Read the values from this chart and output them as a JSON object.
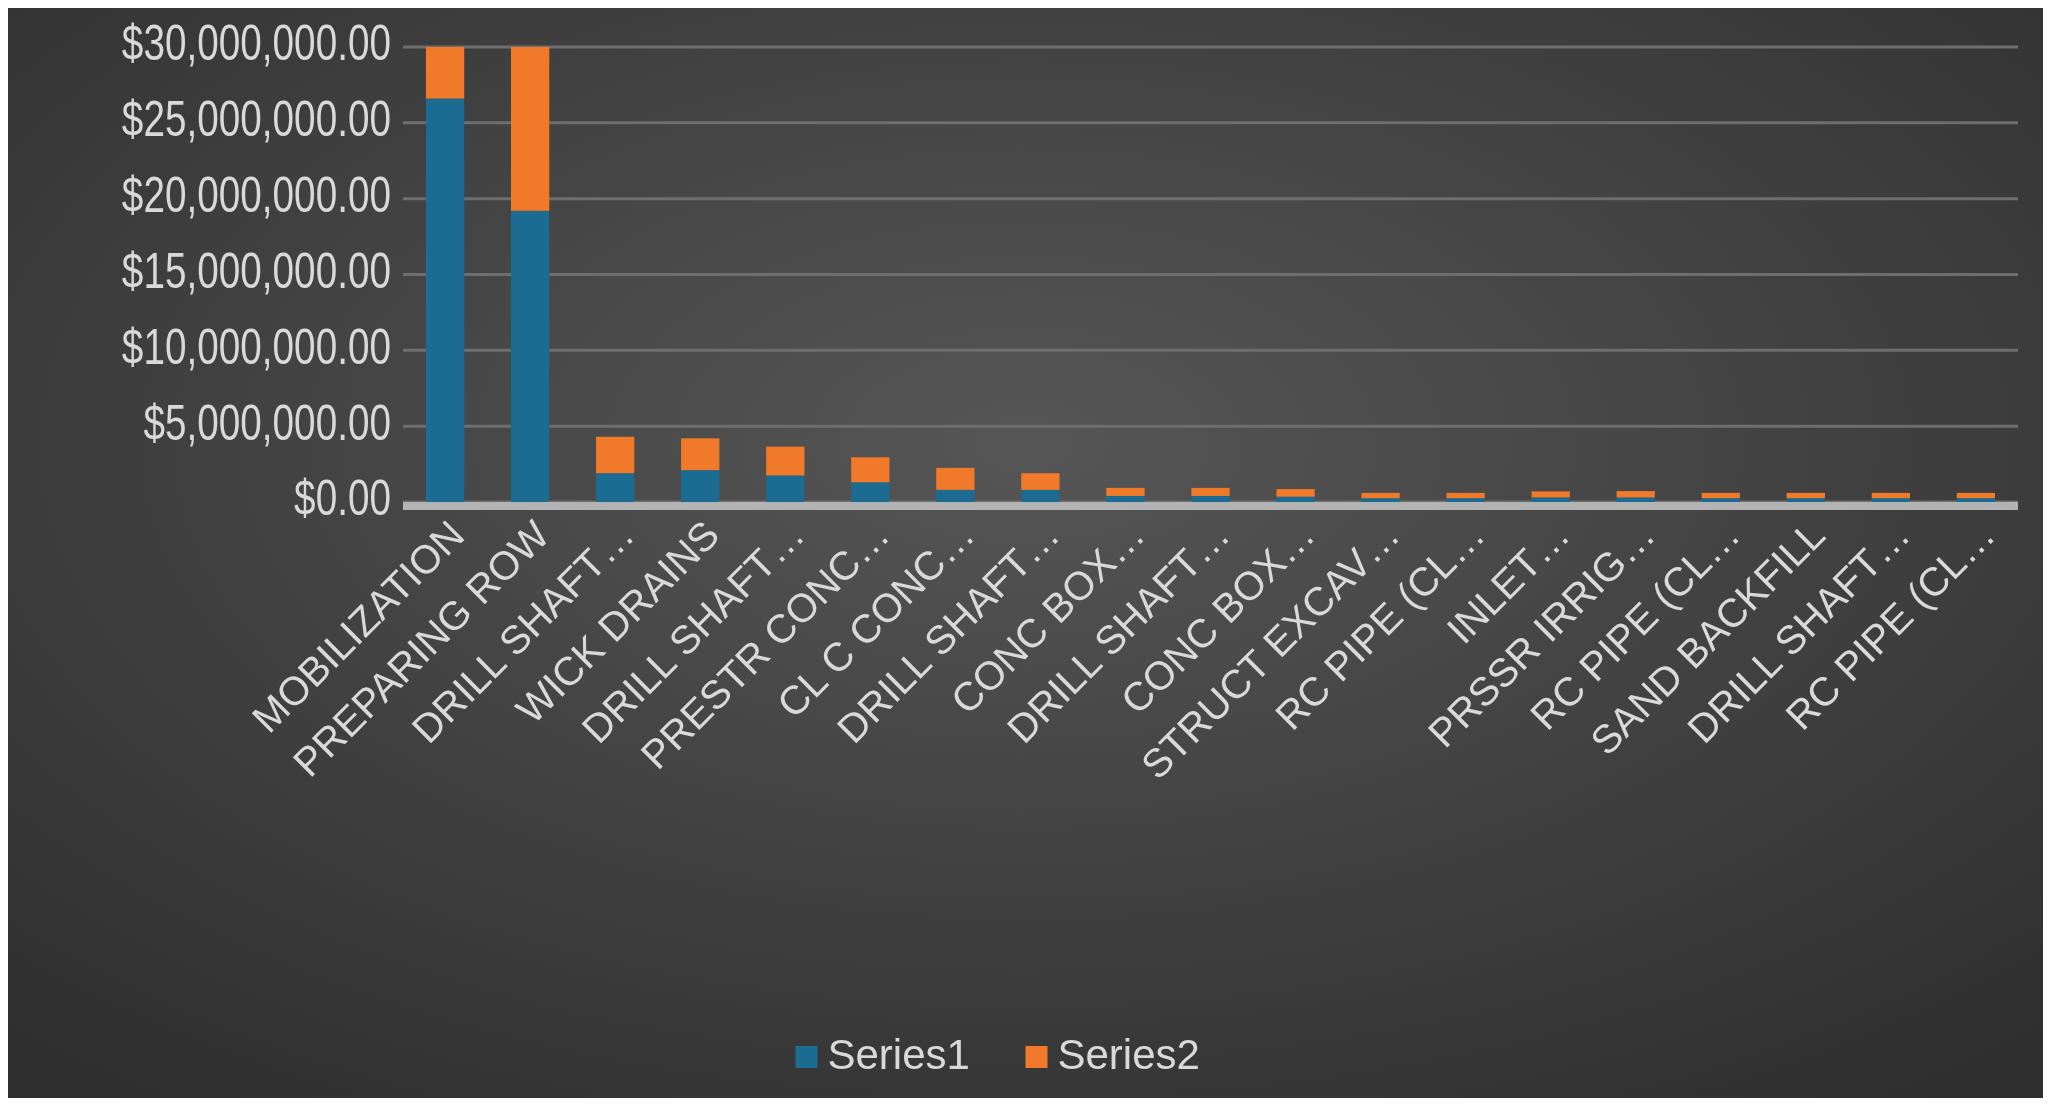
{
  "chart_data": {
    "type": "bar",
    "stacked": true,
    "categories": [
      "MOBILIZATION",
      "PREPARING ROW",
      "DRILL SHAFT…",
      "WICK DRAINS",
      "DRILL SHAFT…",
      "PRESTR CONC…",
      "CL C CONC…",
      "DRILL SHAFT…",
      "CONC BOX…",
      "DRILL SHAFT…",
      "CONC BOX…",
      "STRUCT EXCAV…",
      "RC PIPE (CL…",
      "INLET…",
      "PRSSR IRRIG…",
      "RC PIPE (CL…",
      "SAND BACKFILL",
      "DRILL SHAFT…",
      "RC PIPE (CL…"
    ],
    "series": [
      {
        "name": "Series1",
        "color": "#1b6b92",
        "values": [
          26600000,
          19200000,
          1900000,
          2100000,
          1750000,
          1300000,
          800000,
          800000,
          400000,
          400000,
          350000,
          250000,
          250000,
          300000,
          300000,
          250000,
          250000,
          250000,
          250000
        ]
      },
      {
        "name": "Series2",
        "color": "#f07a2a",
        "values": [
          3400000,
          10800000,
          2400000,
          2100000,
          1900000,
          1650000,
          1450000,
          1100000,
          530000,
          530000,
          500000,
          350000,
          350000,
          400000,
          420000,
          350000,
          350000,
          350000,
          350000
        ]
      }
    ],
    "ylim": [
      0,
      30000000
    ],
    "yticks": [
      {
        "value": 0,
        "label": "$0.00"
      },
      {
        "value": 5000000,
        "label": "$5,000,000.00"
      },
      {
        "value": 10000000,
        "label": "$10,000,000.00"
      },
      {
        "value": 15000000,
        "label": "$15,000,000.00"
      },
      {
        "value": 20000000,
        "label": "$20,000,000.00"
      },
      {
        "value": 25000000,
        "label": "$25,000,000.00"
      },
      {
        "value": 30000000,
        "label": "$30,000,000.00"
      }
    ],
    "grid": "y",
    "legend": "bottom"
  }
}
